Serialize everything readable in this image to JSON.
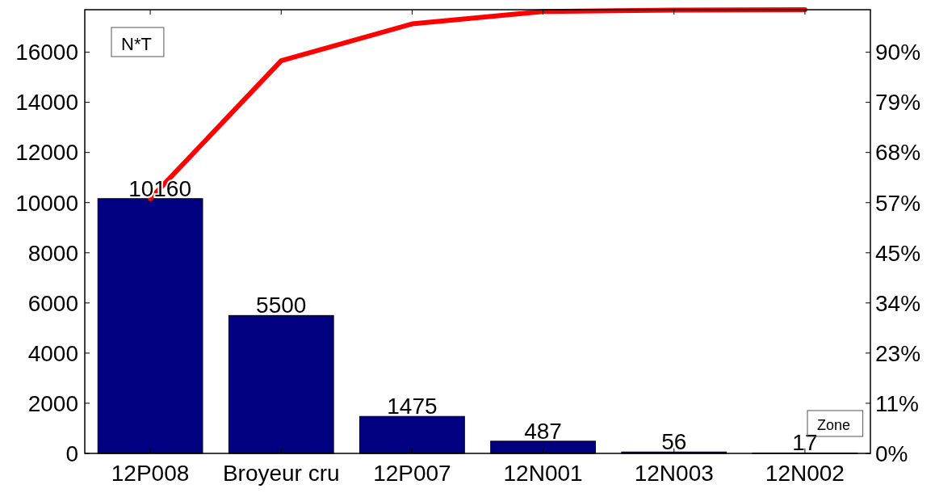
{
  "chart_data": {
    "type": "bar",
    "categories": [
      "12P008",
      "Broyeur cru",
      "12P007",
      "12N001",
      "12N003",
      "12N002"
    ],
    "series": [
      {
        "color": "#000080",
        "values": [
          10160,
          5500,
          1475,
          487,
          56,
          17
        ],
        "value_labels": [
          "10160",
          "5500",
          "1475",
          "487",
          "56",
          "17"
        ]
      },
      {
        "type": "line",
        "axis": "y2",
        "color": "#ff0000",
        "values": [
          57.4,
          88.5,
          96.8,
          99.6,
          99.9,
          100
        ]
      }
    ],
    "ylim": [
      0,
      17695
    ],
    "yticks": [
      0,
      2000,
      4000,
      6000,
      8000,
      10000,
      12000,
      14000,
      16000
    ],
    "y2lim": [
      0,
      100
    ],
    "y2ticks": [
      {
        "value": 0,
        "label": "0%"
      },
      {
        "value": 11.3,
        "label": "11%"
      },
      {
        "value": 22.61,
        "label": "23%"
      },
      {
        "value": 33.91,
        "label": "34%"
      },
      {
        "value": 45.21,
        "label": "45%"
      },
      {
        "value": 56.51,
        "label": "57%"
      },
      {
        "value": 67.82,
        "label": "68%"
      },
      {
        "value": 79.12,
        "label": "79%"
      },
      {
        "value": 90.42,
        "label": "90%"
      }
    ],
    "annotations": [
      "N*T",
      "Zone"
    ],
    "marker": "none",
    "line_style": "solid"
  }
}
